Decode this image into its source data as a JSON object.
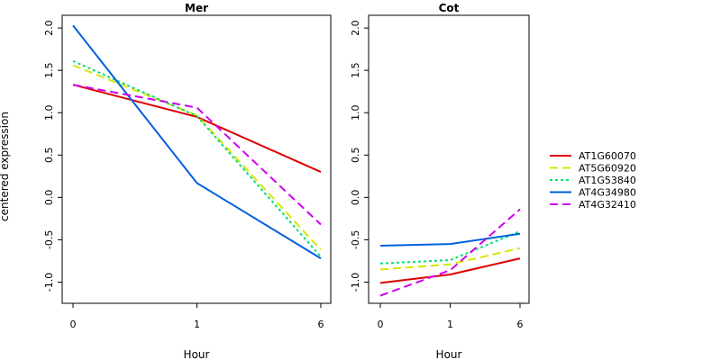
{
  "chart_data": {
    "type": "line",
    "ylabel": "centered expression",
    "ylim": [
      -1.25,
      2.15
    ],
    "yticks": [
      -1.0,
      -0.5,
      0.0,
      0.5,
      1.0,
      1.5,
      2.0
    ],
    "ytick_labels": [
      "-1.0",
      "-0.5",
      "0.0",
      "0.5",
      "1.0",
      "1.5",
      "2.0"
    ],
    "grid": false,
    "legend_position": "right",
    "x_ticks": [
      0,
      1,
      6
    ],
    "x_tick_labels": [
      "0",
      "1",
      "6"
    ],
    "panels": [
      {
        "title": "Mer",
        "xlabel": "Hour",
        "series": [
          {
            "name": "AT1G60070",
            "color": "#dd0000",
            "dash": "solid",
            "values": [
              1.33,
              0.95,
              0.3
            ]
          },
          {
            "name": "AT5G60920",
            "color": "#d8e600",
            "dash": "dashed",
            "values": [
              1.56,
              0.97,
              -0.62
            ]
          },
          {
            "name": "AT1G53840",
            "color": "#00e070",
            "dash": "dotted",
            "values": [
              1.61,
              0.96,
              -0.7
            ]
          },
          {
            "name": "AT4G34980",
            "color": "#0060dd",
            "dash": "solid",
            "values": [
              2.03,
              0.17,
              -0.72
            ]
          },
          {
            "name": "AT4G32410",
            "color": "#cc00ee",
            "dash": "dashed",
            "values": [
              1.33,
              1.06,
              -0.32
            ]
          }
        ]
      },
      {
        "title": "Cot",
        "xlabel": "Hour",
        "series": [
          {
            "name": "AT1G60070",
            "color": "#dd0000",
            "dash": "solid",
            "values": [
              -1.01,
              -0.91,
              -0.72
            ]
          },
          {
            "name": "AT5G60920",
            "color": "#d8e600",
            "dash": "dashed",
            "values": [
              -0.85,
              -0.79,
              -0.6
            ]
          },
          {
            "name": "AT1G53840",
            "color": "#00e070",
            "dash": "dotted",
            "values": [
              -0.78,
              -0.74,
              -0.4
            ]
          },
          {
            "name": "AT4G34980",
            "color": "#0060dd",
            "dash": "solid",
            "values": [
              -0.57,
              -0.55,
              -0.43
            ]
          },
          {
            "name": "AT4G32410",
            "color": "#cc00ee",
            "dash": "dashed",
            "values": [
              -1.16,
              -0.86,
              -0.14
            ]
          }
        ]
      }
    ]
  }
}
